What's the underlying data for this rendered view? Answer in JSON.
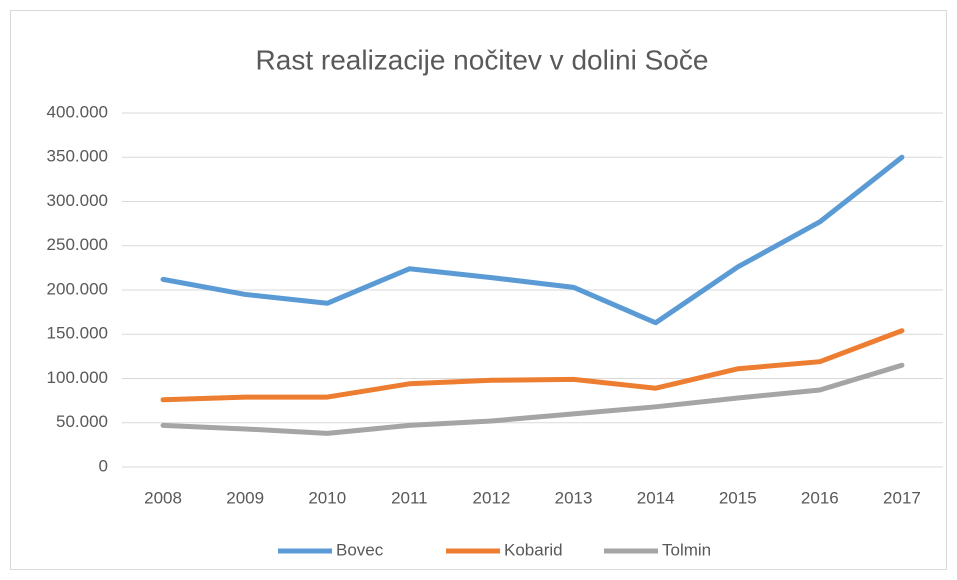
{
  "chart_data": {
    "type": "line",
    "title": "Rast realizacije nočitev v dolini Soče",
    "categories": [
      "2008",
      "2009",
      "2010",
      "2011",
      "2012",
      "2013",
      "2014",
      "2015",
      "2016",
      "2017"
    ],
    "series": [
      {
        "name": "Bovec",
        "color": "#5b9bd5",
        "values": [
          212000,
          195000,
          185000,
          224000,
          214000,
          203000,
          163000,
          226000,
          277000,
          350000
        ]
      },
      {
        "name": "Kobarid",
        "color": "#ed7d31",
        "values": [
          76000,
          79000,
          79000,
          94000,
          98000,
          99000,
          89000,
          111000,
          119000,
          154000
        ]
      },
      {
        "name": "Tolmin",
        "color": "#a5a5a5",
        "values": [
          47000,
          43000,
          38000,
          47000,
          52000,
          60000,
          68000,
          78000,
          87000,
          115000
        ]
      }
    ],
    "ylim": [
      0,
      400000
    ],
    "yticks": [
      0,
      {
        "value": 50000,
        "label": "50.000"
      },
      {
        "value": 100000,
        "label": "100.000"
      },
      {
        "value": 150000,
        "label": "150.000"
      },
      {
        "value": 200000,
        "label": "200.000"
      },
      {
        "value": 250000,
        "label": "250.000"
      },
      {
        "value": 300000,
        "label": "300.000"
      },
      {
        "value": 350000,
        "label": "350.000"
      },
      {
        "value": 400000,
        "label": "400.000"
      }
    ],
    "grid": true,
    "legend": "bottom"
  }
}
